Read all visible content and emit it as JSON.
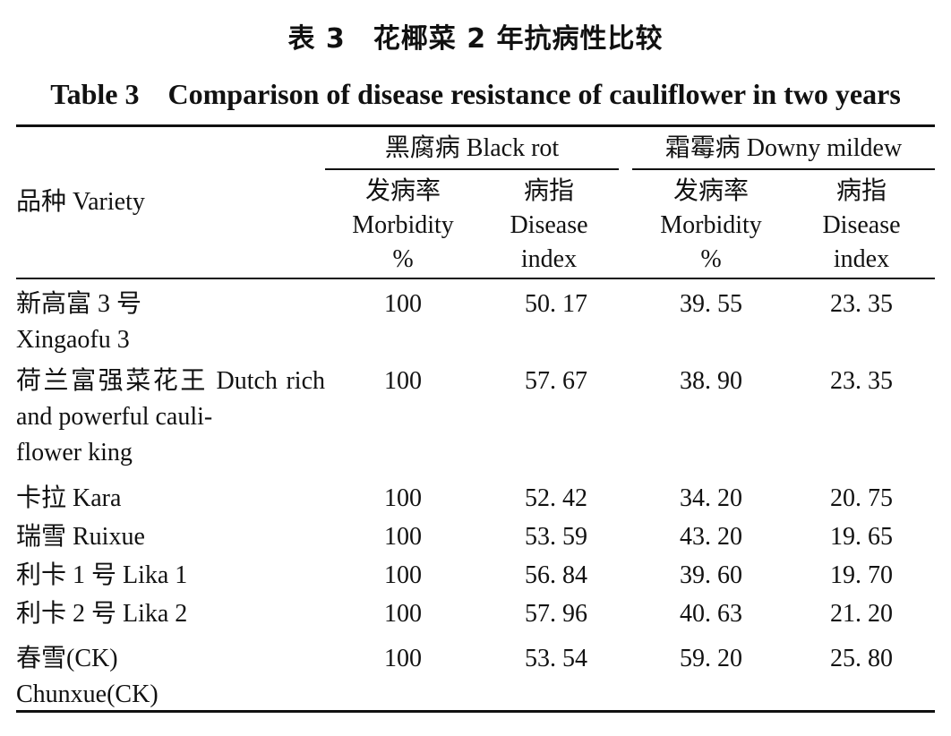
{
  "caption": {
    "cn": "表 3　花椰菜 2 年抗病性比较",
    "en": "Table 3　Comparison of disease resistance of cauliflower in two years"
  },
  "header": {
    "variety": "品种 Variety",
    "black_rot": "黑腐病 Black rot",
    "downy_mildew": "霜霉病 Downy mildew",
    "morbidity": [
      "发病率",
      "Morbidity",
      "%"
    ],
    "disease_index": [
      "病指",
      "Disease",
      "index"
    ]
  },
  "rows": [
    {
      "variety": [
        "新高富 3 号",
        "Xingaofu 3"
      ],
      "br_morbidity": "100",
      "br_index": "50. 17",
      "dm_morbidity": "39. 55",
      "dm_index": "23. 35"
    },
    {
      "variety": [
        "荷兰富强菜花王 Dutch rich and powerful cauli-",
        "flower king"
      ],
      "br_morbidity": "100",
      "br_index": "57. 67",
      "dm_morbidity": "38. 90",
      "dm_index": "23. 35"
    },
    {
      "variety": [
        "卡拉 Kara"
      ],
      "br_morbidity": "100",
      "br_index": "52. 42",
      "dm_morbidity": "34. 20",
      "dm_index": "20. 75"
    },
    {
      "variety": [
        "瑞雪 Ruixue"
      ],
      "br_morbidity": "100",
      "br_index": "53. 59",
      "dm_morbidity": "43. 20",
      "dm_index": "19. 65"
    },
    {
      "variety": [
        "利卡 1 号 Lika 1"
      ],
      "br_morbidity": "100",
      "br_index": "56. 84",
      "dm_morbidity": "39. 60",
      "dm_index": "19. 70"
    },
    {
      "variety": [
        "利卡 2 号 Lika 2"
      ],
      "br_morbidity": "100",
      "br_index": "57. 96",
      "dm_morbidity": "40. 63",
      "dm_index": "21. 20"
    },
    {
      "variety": [
        "春雪(CK)",
        "Chunxue(CK)"
      ],
      "br_morbidity": "100",
      "br_index": "53. 54",
      "dm_morbidity": "59. 20",
      "dm_index": "25. 80"
    }
  ]
}
